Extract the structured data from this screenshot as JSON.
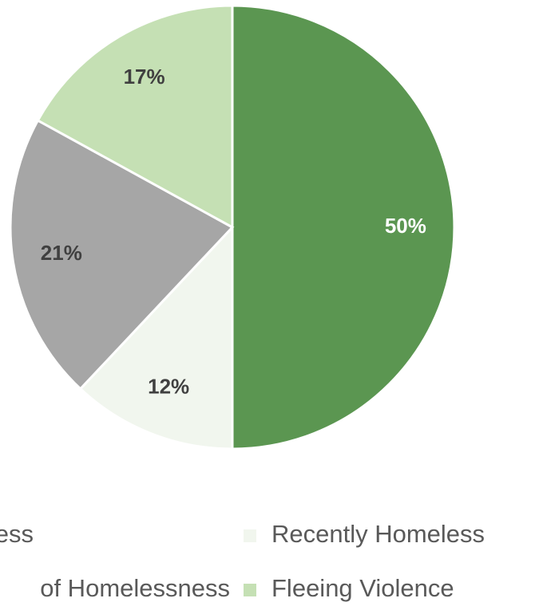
{
  "chart_data": {
    "type": "pie",
    "categories": [
      "ess",
      "Recently Homeless",
      "of Homelessness",
      "Fleeing Violence"
    ],
    "values": [
      50,
      12,
      21,
      17
    ],
    "value_labels": [
      "50%",
      "12%",
      "21%",
      "17%"
    ],
    "colors": [
      "#5b9651",
      "#f1f6ee",
      "#a6a6a6",
      "#c5e0b4"
    ],
    "label_colors": [
      "#ffffff",
      "#404040",
      "#404040",
      "#404040"
    ]
  }
}
